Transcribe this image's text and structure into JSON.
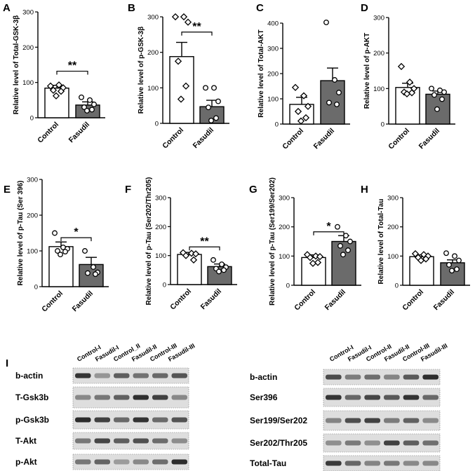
{
  "chart_data": [
    {
      "id": "A",
      "type": "bar",
      "panel_label": "A",
      "ylabel": "Relative level of Total-GSK-3β",
      "categories": [
        "Control",
        "Fasudil"
      ],
      "ylim": [
        0,
        300
      ],
      "yticks": [
        0,
        100,
        200,
        300
      ],
      "values": [
        84,
        36
      ],
      "sem": [
        8,
        9
      ],
      "points": [
        [
          90,
          93,
          85,
          78,
          75,
          62
        ],
        [
          58,
          50,
          38,
          30,
          23,
          20
        ]
      ],
      "markers": [
        "diamond",
        "circle"
      ],
      "significance": {
        "label": "**",
        "y": 132
      }
    },
    {
      "id": "B",
      "type": "bar",
      "panel_label": "B",
      "ylabel": "Relative level of p-GSK-3β",
      "categories": [
        "Control",
        "Fasudil"
      ],
      "ylim": [
        0,
        300
      ],
      "yticks": [
        0,
        100,
        200,
        300
      ],
      "values": [
        188,
        47
      ],
      "sem": [
        40,
        18
      ],
      "points": [
        [
          300,
          300,
          285,
          175,
          105,
          68
        ],
        [
          100,
          100,
          62,
          45,
          15,
          8
        ]
      ],
      "markers": [
        "diamond",
        "circle"
      ],
      "significance": {
        "label": "**",
        "y": 257
      }
    },
    {
      "id": "C",
      "type": "bar",
      "panel_label": "C",
      "ylabel": "Relative level of Total-AKT",
      "categories": [
        "Control",
        "Fasudil"
      ],
      "ylim": [
        0,
        400
      ],
      "yticks": [
        0,
        100,
        200,
        300,
        400
      ],
      "values": [
        78,
        172
      ],
      "sem": [
        28,
        50
      ],
      "points": [
        [
          145,
          112,
          70,
          50,
          25,
          12
        ],
        [
          403,
          175,
          125,
          85,
          78
        ]
      ],
      "markers": [
        "diamond",
        "circle"
      ]
    },
    {
      "id": "D",
      "type": "bar",
      "panel_label": "D",
      "ylabel": "Relative level of p-AKT",
      "categories": [
        "Control",
        "Fasudil"
      ],
      "ylim": [
        0,
        300
      ],
      "yticks": [
        0,
        100,
        200,
        300
      ],
      "values": [
        103,
        84
      ],
      "sem": [
        12,
        9
      ],
      "points": [
        [
          162,
          118,
          100,
          90,
          88,
          85
        ],
        [
          100,
          95,
          90,
          82,
          70,
          42
        ]
      ],
      "markers": [
        "diamond",
        "circle"
      ]
    },
    {
      "id": "E",
      "type": "bar",
      "panel_label": "E",
      "ylabel": "Relative level of p-Tau (Ser 396)",
      "categories": [
        "Control",
        "Fasudil"
      ],
      "ylim": [
        0,
        300
      ],
      "yticks": [
        0,
        100,
        200,
        300
      ],
      "values": [
        112,
        62
      ],
      "sem": [
        13,
        20
      ],
      "points": [
        [
          150,
          110,
          106,
          100,
          98,
          90
        ],
        [
          100,
          55,
          40,
          38,
          35
        ]
      ],
      "markers": [
        "circle",
        "circle"
      ],
      "significance": {
        "label": "*",
        "y": 137
      }
    },
    {
      "id": "F",
      "type": "bar",
      "panel_label": "F",
      "ylabel": "Relative level of p-Tau (Ser202/Thr205)",
      "categories": [
        "Control",
        "Fasudil"
      ],
      "ylim": [
        0,
        300
      ],
      "yticks": [
        0,
        100,
        200,
        300
      ],
      "values": [
        104,
        62
      ],
      "sem": [
        7,
        9
      ],
      "points": [
        [
          110,
          108,
          106,
          100,
          85
        ],
        [
          85,
          70,
          60,
          55,
          50,
          45
        ]
      ],
      "markers": [
        "diamond",
        "circle"
      ],
      "significance": {
        "label": "**",
        "y": 130
      }
    },
    {
      "id": "G",
      "type": "bar",
      "panel_label": "G",
      "ylabel": "Relative level of p-Tau (Ser199/Ser202)",
      "categories": [
        "Control",
        "Fasudil"
      ],
      "ylim": [
        0,
        300
      ],
      "yticks": [
        0,
        100,
        200,
        300
      ],
      "values": [
        95,
        150
      ],
      "sem": [
        9,
        20
      ],
      "points": [
        [
          105,
          100,
          98,
          95,
          78,
          75
        ],
        [
          200,
          170,
          150,
          135,
          120,
          105
        ]
      ],
      "markers": [
        "diamond",
        "circle"
      ],
      "significance": {
        "label": "*",
        "y": 183
      }
    },
    {
      "id": "H",
      "type": "bar",
      "panel_label": "H",
      "ylabel": "Relative level of Total-Tau",
      "categories": [
        "Control",
        "Fasudil"
      ],
      "ylim": [
        0,
        300
      ],
      "yticks": [
        0,
        100,
        200,
        300
      ],
      "values": [
        98,
        77
      ],
      "sem": [
        6,
        10
      ],
      "points": [
        [
          108,
          105,
          100,
          95,
          90,
          85
        ],
        [
          110,
          100,
          85,
          70,
          55,
          50
        ]
      ],
      "markers": [
        "diamond",
        "circle"
      ]
    }
  ],
  "blot": {
    "panel_label": "I",
    "left": {
      "lanes": [
        "Control-I",
        "Fasudil-I",
        "Control_II",
        "Fasudil-II",
        "Control-III",
        "Fasudil-III"
      ],
      "rows": [
        "b-actin",
        "T-Gsk3b",
        "p-Gsk3b",
        "T-Akt",
        "p-Akt"
      ]
    },
    "right": {
      "lanes": [
        "Control-I",
        "Fasudil-I",
        "Control-II",
        "Fasudil-II",
        "Control-III",
        "Fasudil-III"
      ],
      "rows": [
        "b-actin",
        "Ser396",
        "Ser199/Ser202",
        "Ser202/Thr205",
        "Total-Tau"
      ]
    }
  },
  "colors": {
    "control_fill": "#ffffff",
    "fasudil_fill": "#6b6b6b",
    "axis": "#000000",
    "band": "#222222",
    "membrane": "#dedede"
  }
}
